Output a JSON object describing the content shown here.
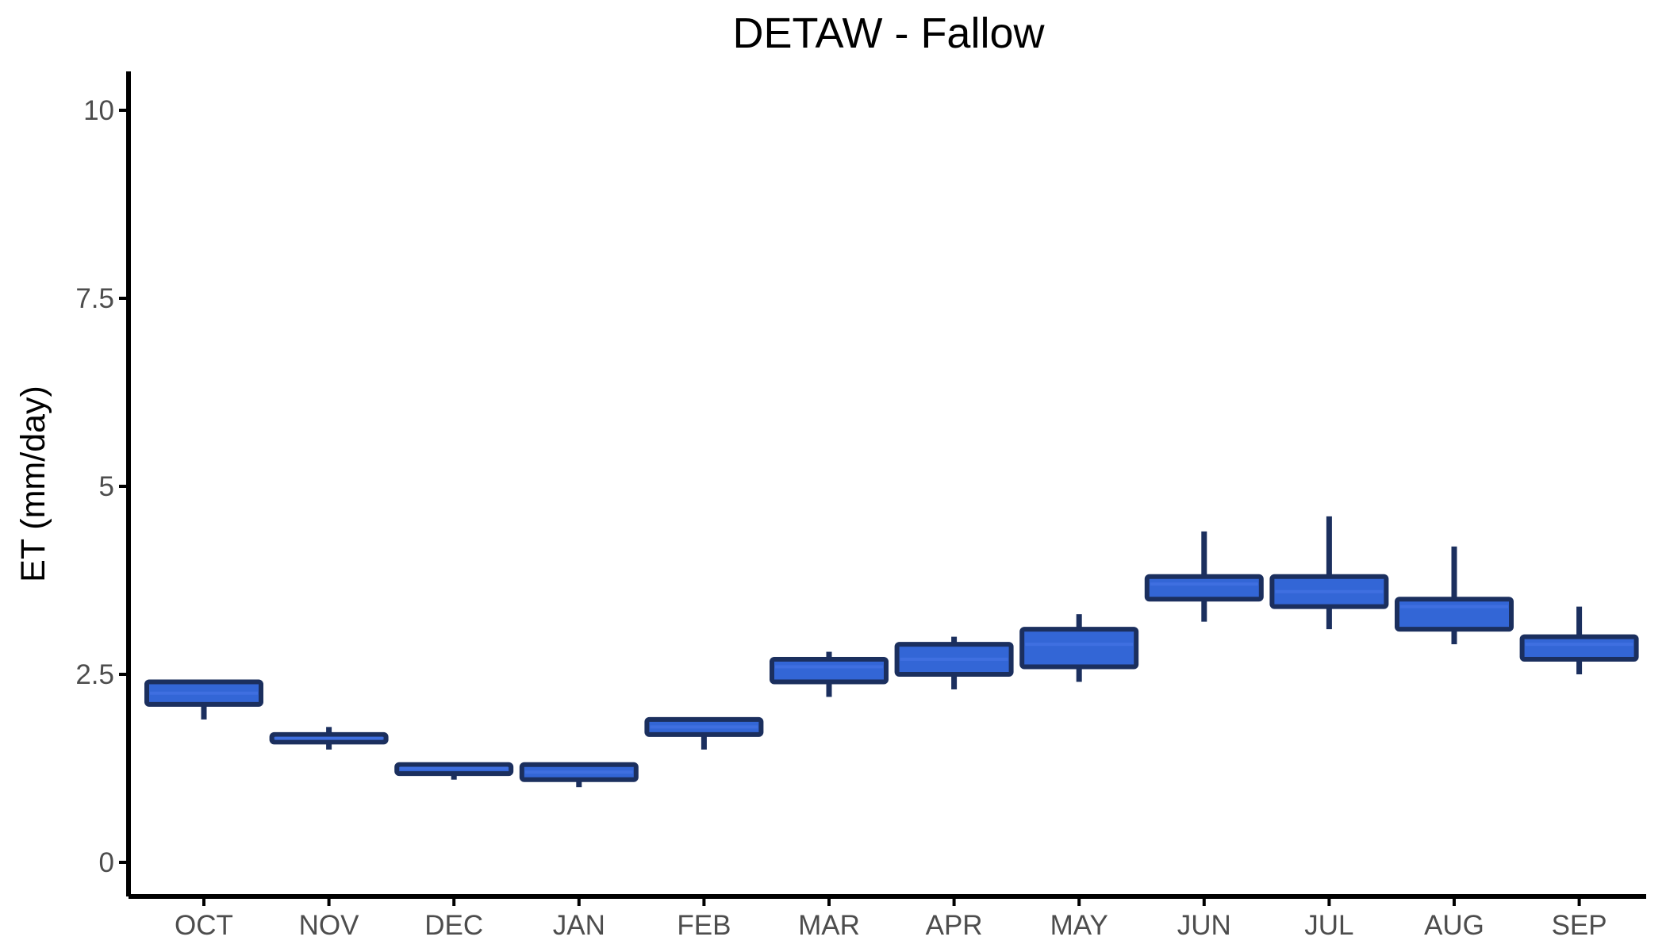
{
  "chart_data": {
    "type": "box",
    "title": "DETAW - Fallow",
    "xlabel": "",
    "ylabel": "ET (mm/day)",
    "ylim": [
      -0.5,
      10.5
    ],
    "yticks": [
      {
        "value": 0,
        "label": "0"
      },
      {
        "value": 2.5,
        "label": "2.5"
      },
      {
        "value": 5,
        "label": "5"
      },
      {
        "value": 7.5,
        "label": "7.5"
      },
      {
        "value": 10,
        "label": "10"
      }
    ],
    "categories": [
      "OCT",
      "NOV",
      "DEC",
      "JAN",
      "FEB",
      "MAR",
      "APR",
      "MAY",
      "JUN",
      "JUL",
      "AUG",
      "SEP"
    ],
    "boxes": [
      {
        "min": 1.9,
        "q1": 2.1,
        "median": 2.25,
        "q3": 2.4,
        "max": 2.4
      },
      {
        "min": 1.5,
        "q1": 1.6,
        "median": 1.65,
        "q3": 1.7,
        "max": 1.8
      },
      {
        "min": 1.1,
        "q1": 1.18,
        "median": 1.25,
        "q3": 1.3,
        "max": 1.3
      },
      {
        "min": 1.0,
        "q1": 1.1,
        "median": 1.2,
        "q3": 1.3,
        "max": 1.3
      },
      {
        "min": 1.5,
        "q1": 1.7,
        "median": 1.8,
        "q3": 1.9,
        "max": 1.9
      },
      {
        "min": 2.2,
        "q1": 2.4,
        "median": 2.6,
        "q3": 2.7,
        "max": 2.8
      },
      {
        "min": 2.3,
        "q1": 2.5,
        "median": 2.7,
        "q3": 2.9,
        "max": 3.0
      },
      {
        "min": 2.4,
        "q1": 2.6,
        "median": 2.9,
        "q3": 3.1,
        "max": 3.3
      },
      {
        "min": 3.2,
        "q1": 3.5,
        "median": 3.7,
        "q3": 3.8,
        "max": 4.4
      },
      {
        "min": 3.1,
        "q1": 3.4,
        "median": 3.6,
        "q3": 3.8,
        "max": 4.6
      },
      {
        "min": 2.9,
        "q1": 3.1,
        "median": 3.4,
        "q3": 3.5,
        "max": 4.2
      },
      {
        "min": 2.5,
        "q1": 2.7,
        "median": 2.9,
        "q3": 3.0,
        "max": 3.4
      }
    ],
    "grid": false,
    "colors": {
      "box_fill": "#3366d6",
      "box_stroke": "#1b2f5e",
      "median": "#3f6fe0",
      "whisker": "#1b2f5e"
    }
  }
}
